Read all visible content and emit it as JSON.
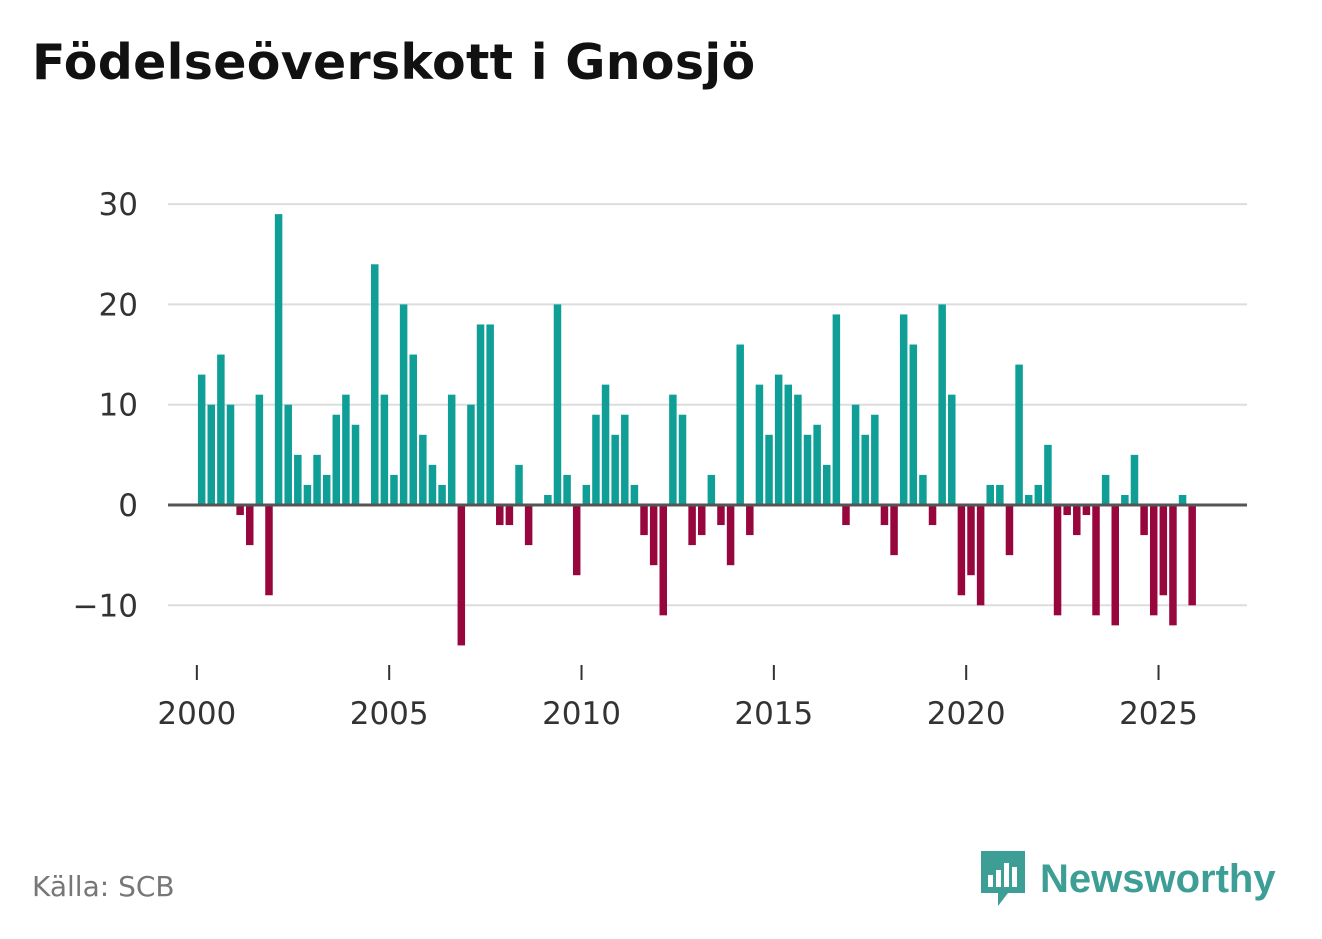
{
  "title": "Födelseöverskott i Gnosjö",
  "source": "Källa: SCB",
  "brand": {
    "name": "Newsworthy",
    "icon": "newsworthy-logo-icon"
  },
  "colors": {
    "positive": "#0f9f97",
    "negative": "#98063e",
    "grid": "#dddddd",
    "zero_line": "#555555",
    "brand": "#3d9e96"
  },
  "chart_data": {
    "type": "bar",
    "title": "Födelseöverskott i Gnosjö",
    "xlabel": "",
    "ylabel": "",
    "x_start_year": 2000,
    "points_per_year": 4,
    "ylim": [
      -15,
      33
    ],
    "xlim": [
      1999.25,
      2027.3
    ],
    "y_ticks": [
      30,
      20,
      10,
      0,
      -10
    ],
    "y_tick_labels": [
      "30",
      "20",
      "10",
      "0",
      "−10"
    ],
    "x_ticks": [
      2000,
      2005,
      2010,
      2015,
      2020,
      2025
    ],
    "x_tick_labels": [
      "2000",
      "2005",
      "2010",
      "2015",
      "2020",
      "2025"
    ],
    "values": [
      13,
      10,
      15,
      10,
      -1,
      -4,
      11,
      -9,
      29,
      10,
      5,
      2,
      5,
      3,
      9,
      11,
      8,
      0,
      24,
      11,
      3,
      20,
      15,
      7,
      4,
      2,
      11,
      -14,
      10,
      18,
      18,
      -2,
      -2,
      4,
      -4,
      0,
      1,
      20,
      3,
      -7,
      2,
      9,
      12,
      7,
      9,
      2,
      -3,
      -6,
      -11,
      11,
      9,
      -4,
      -3,
      3,
      -2,
      -6,
      16,
      -3,
      12,
      7,
      13,
      12,
      11,
      7,
      8,
      4,
      19,
      -2,
      10,
      7,
      9,
      -2,
      -5,
      19,
      16,
      3,
      -2,
      20,
      11,
      -9,
      -7,
      -10,
      2,
      2,
      -5,
      14,
      1,
      2,
      6,
      -11,
      -1,
      -3,
      -1,
      -11,
      3,
      -12,
      1,
      5,
      -3,
      -11,
      -9,
      -12,
      1,
      -10
    ]
  }
}
